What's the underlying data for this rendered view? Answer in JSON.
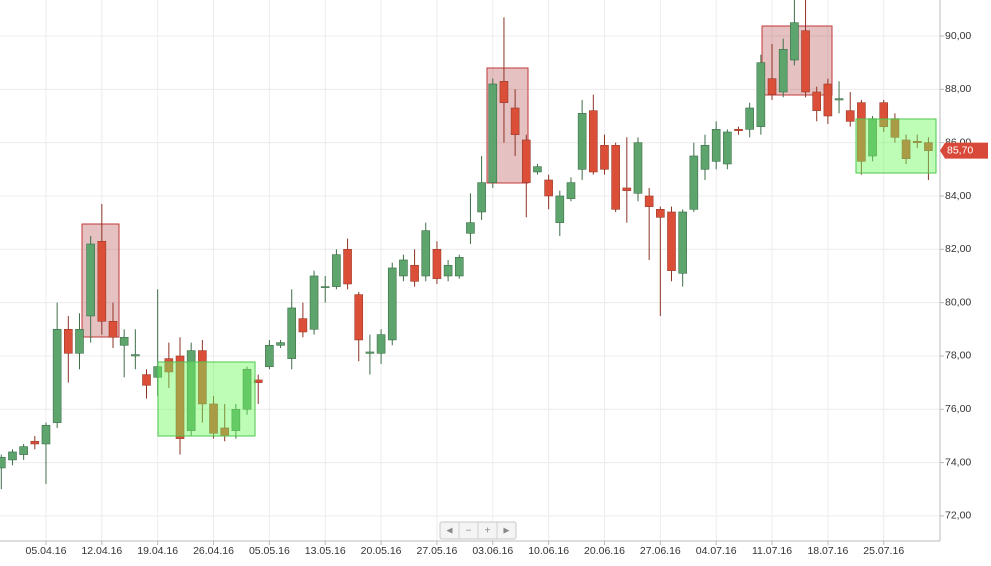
{
  "chart_data": {
    "type": "candlestick",
    "categories": [
      null,
      null,
      null,
      null,
      "05.04.16",
      null,
      null,
      null,
      null,
      "12.04.16",
      null,
      null,
      null,
      null,
      "19.04.16",
      null,
      null,
      null,
      null,
      "26.04.16",
      null,
      null,
      null,
      null,
      "05.05.16",
      null,
      null,
      null,
      null,
      "13.05.16",
      null,
      null,
      null,
      null,
      "20.05.16",
      null,
      null,
      null,
      null,
      "27.05.16",
      null,
      null,
      null,
      null,
      "03.06.16",
      null,
      null,
      null,
      null,
      "10.06.16",
      null,
      null,
      null,
      null,
      "20.06.16",
      null,
      null,
      null,
      null,
      "27.06.16",
      null,
      null,
      null,
      null,
      "04.07.16",
      null,
      null,
      null,
      null,
      "11.07.16",
      null,
      null,
      null,
      null,
      "18.07.16",
      null,
      null,
      null,
      null,
      "25.07.16",
      null,
      null,
      null,
      null
    ],
    "open": [
      73.8,
      74.1,
      74.3,
      74.8,
      74.7,
      75.5,
      79.0,
      78.1,
      79.5,
      82.3,
      79.3,
      78.4,
      78.0,
      77.3,
      77.2,
      77.9,
      78.0,
      75.2,
      78.2,
      76.2,
      75.3,
      75.2,
      76.0,
      77.1,
      77.6,
      78.4,
      77.9,
      79.4,
      79.0,
      80.6,
      80.6,
      82.0,
      80.3,
      78.1,
      78.1,
      78.6,
      81.0,
      81.4,
      81.0,
      82.0,
      81.0,
      81.0,
      82.6,
      83.4,
      84.5,
      88.3,
      87.3,
      86.1,
      84.9,
      84.6,
      83.0,
      83.9,
      85.0,
      87.2,
      85.9,
      85.9,
      84.3,
      84.1,
      84.0,
      83.5,
      83.4,
      81.1,
      83.5,
      85.0,
      85.3,
      85.2,
      86.5,
      86.5,
      86.6,
      88.4,
      87.9,
      89.1,
      90.2,
      87.9,
      88.2,
      87.6,
      87.2,
      87.5,
      85.5,
      87.5,
      86.9,
      86.1,
      86.05,
      86.0
    ],
    "high": [
      74.3,
      74.5,
      74.7,
      75.0,
      75.5,
      80.0,
      79.5,
      79.6,
      82.5,
      83.7,
      80.0,
      79.0,
      79.0,
      77.5,
      80.5,
      78.5,
      78.7,
      78.5,
      78.6,
      76.5,
      76.2,
      76.2,
      77.6,
      77.3,
      78.6,
      78.6,
      80.5,
      80.0,
      81.2,
      81.0,
      82.0,
      82.4,
      80.4,
      78.8,
      79.0,
      81.5,
      81.8,
      82.0,
      83.0,
      82.3,
      81.6,
      81.8,
      84.1,
      85.5,
      88.4,
      90.7,
      88.0,
      86.3,
      85.2,
      84.8,
      84.2,
      84.7,
      87.6,
      87.8,
      86.3,
      86.0,
      86.2,
      86.2,
      84.3,
      83.6,
      83.6,
      83.5,
      86.0,
      86.3,
      86.8,
      86.5,
      86.6,
      87.5,
      89.3,
      89.7,
      89.9,
      91.5,
      91.5,
      88.1,
      88.4,
      88.3,
      87.9,
      87.6,
      87.0,
      87.6,
      87.1,
      86.3,
      86.3,
      86.2
    ],
    "low": [
      73.0,
      73.9,
      74.1,
      74.5,
      73.2,
      75.3,
      77.0,
      77.5,
      78.5,
      78.8,
      78.3,
      77.2,
      77.5,
      76.4,
      76.5,
      76.8,
      74.3,
      75.0,
      75.5,
      74.9,
      74.8,
      74.9,
      75.8,
      76.2,
      77.5,
      78.3,
      77.5,
      78.7,
      78.8,
      80.0,
      80.5,
      80.5,
      77.8,
      77.3,
      77.7,
      78.4,
      80.8,
      80.6,
      80.8,
      80.7,
      80.8,
      80.9,
      82.2,
      83.1,
      84.3,
      86.0,
      85.5,
      83.2,
      84.8,
      83.5,
      82.5,
      83.8,
      84.6,
      84.8,
      84.8,
      83.4,
      83.0,
      83.8,
      81.6,
      79.5,
      80.8,
      80.6,
      83.4,
      84.6,
      85.0,
      85.0,
      86.3,
      86.2,
      86.3,
      87.6,
      87.7,
      88.9,
      87.7,
      86.8,
      86.7,
      87.1,
      86.6,
      84.8,
      85.3,
      86.4,
      86.0,
      85.2,
      85.8,
      84.6
    ],
    "close": [
      74.2,
      74.4,
      74.6,
      74.7,
      75.4,
      79.0,
      78.1,
      79.0,
      82.2,
      79.3,
      78.7,
      78.7,
      78.05,
      76.9,
      77.6,
      77.4,
      74.9,
      78.2,
      76.2,
      75.1,
      75.0,
      76.0,
      77.5,
      77.0,
      78.4,
      78.5,
      79.8,
      78.9,
      81.0,
      80.6,
      81.8,
      80.7,
      78.6,
      78.15,
      78.8,
      81.3,
      81.6,
      80.8,
      82.7,
      80.9,
      81.4,
      81.7,
      83.0,
      84.5,
      88.2,
      87.5,
      86.3,
      84.5,
      85.1,
      84.0,
      84.0,
      84.5,
      87.1,
      84.9,
      85.0,
      83.5,
      84.2,
      86.0,
      83.6,
      83.2,
      81.2,
      83.4,
      85.5,
      85.9,
      86.5,
      86.4,
      86.45,
      87.3,
      89.0,
      87.8,
      89.5,
      90.5,
      87.9,
      87.2,
      87.0,
      87.65,
      86.8,
      85.3,
      86.9,
      86.6,
      86.2,
      85.4,
      86.0,
      85.7
    ],
    "up_color": "#5da46d",
    "down_color": "#db4f38",
    "ylim": [
      71.06,
      91.35
    ],
    "yticks": [
      {
        "value": 72,
        "label": "72,00"
      },
      {
        "value": 74,
        "label": "74,00"
      },
      {
        "value": 76,
        "label": "76,00"
      },
      {
        "value": 78,
        "label": "78,00"
      },
      {
        "value": 80,
        "label": "80,00"
      },
      {
        "value": 82,
        "label": "82,00"
      },
      {
        "value": 84,
        "label": "84,00"
      },
      {
        "value": 86,
        "label": "86,00"
      },
      {
        "value": 88,
        "label": "88,00"
      },
      {
        "value": 90,
        "label": "90,00"
      }
    ],
    "grid": true,
    "last_price": {
      "value": 85.7,
      "label": "85,70"
    },
    "controls": [
      "◄",
      "−",
      "+",
      "►"
    ]
  }
}
